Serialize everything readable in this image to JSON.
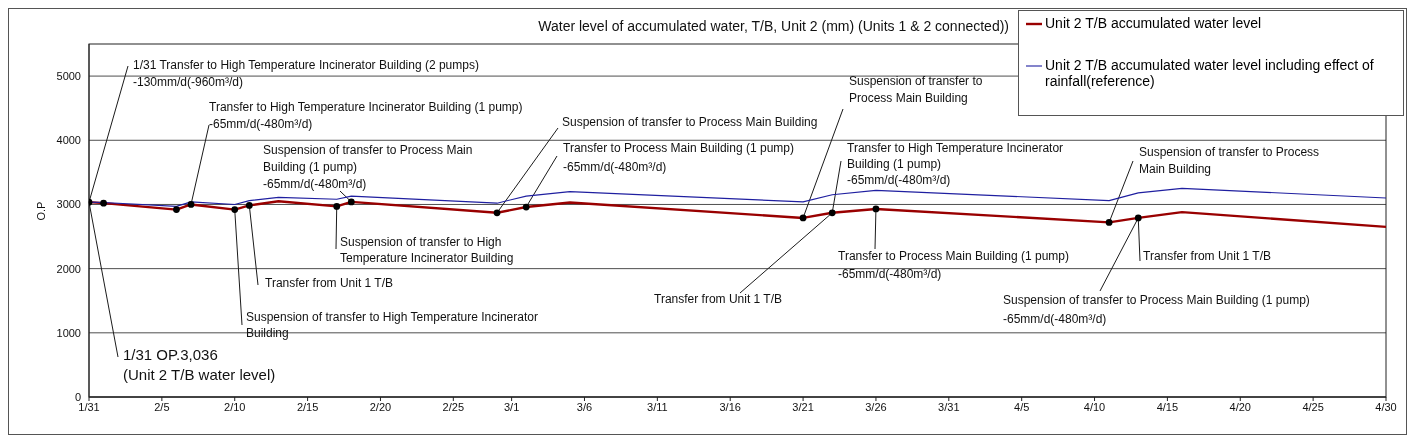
{
  "chart_data": {
    "type": "line",
    "title": "Water level of accumulated water, T/B, Unit 2 (mm) (Units 1 & 2 connected))",
    "ylabel": "O.P",
    "xlim": [
      "--01-31",
      "--04-30"
    ],
    "xticks": [
      {
        "value": "--01-31",
        "label": "1/31"
      },
      {
        "value": "--02-05",
        "label": "2/5"
      },
      {
        "value": "--02-10",
        "label": "2/10"
      },
      {
        "value": "--02-15",
        "label": "2/15"
      },
      {
        "value": "--02-20",
        "label": "2/20"
      },
      {
        "value": "--02-25",
        "label": "2/25"
      },
      {
        "value": "--03-01",
        "label": "3/1"
      },
      {
        "value": "--03-06",
        "label": "3/6"
      },
      {
        "value": "--03-11",
        "label": "3/11"
      },
      {
        "value": "--03-16",
        "label": "3/16"
      },
      {
        "value": "--03-21",
        "label": "3/21"
      },
      {
        "value": "--03-26",
        "label": "3/26"
      },
      {
        "value": "--03-31",
        "label": "3/31"
      },
      {
        "value": "--04-05",
        "label": "4/5"
      },
      {
        "value": "--04-10",
        "label": "4/10"
      },
      {
        "value": "--04-15",
        "label": "4/15"
      },
      {
        "value": "--04-20",
        "label": "4/20"
      },
      {
        "value": "--04-25",
        "label": "4/25"
      },
      {
        "value": "--04-30",
        "label": "4/30"
      }
    ],
    "ylim": [
      0,
      5500
    ],
    "yticks": [
      0,
      1000,
      2000,
      3000,
      4000,
      5000
    ],
    "grid": "y",
    "legend": "top right",
    "series": [
      {
        "name": "Unit 2 T/B accumulated water level",
        "color": "#990000",
        "x": [
          "--01-31",
          "--02-01",
          "--02-06",
          "--02-07",
          "--02-10",
          "--02-11",
          "--02-13",
          "--02-17",
          "--02-18",
          "--02-28",
          "--03-02",
          "--03-05",
          "--03-21",
          "--03-23",
          "--03-26",
          "--04-11",
          "--04-13",
          "--04-16",
          "--04-30"
        ],
        "values": [
          3036,
          3020,
          2920,
          3000,
          2920,
          2985,
          3050,
          2970,
          3040,
          2870,
          2960,
          3030,
          2790,
          2870,
          2930,
          2720,
          2790,
          2880,
          2650
        ]
      },
      {
        "name": "Unit 2 T/B accumulated water level including effect of rainfall(reference)",
        "color": "#1f1fa0",
        "x": [
          "--01-31",
          "--02-01",
          "--02-06",
          "--02-07",
          "--02-10",
          "--02-11",
          "--02-13",
          "--02-17",
          "--02-18",
          "--02-28",
          "--03-02",
          "--03-05",
          "--03-21",
          "--03-23",
          "--03-26",
          "--04-11",
          "--04-13",
          "--04-16",
          "--04-30"
        ],
        "values": [
          3036,
          3030,
          2970,
          3040,
          3000,
          3060,
          3110,
          3080,
          3130,
          3020,
          3130,
          3200,
          3040,
          3150,
          3220,
          3060,
          3180,
          3250,
          3100
        ]
      },
      {
        "type": "scatter",
        "color": "#000000",
        "marker": "circle",
        "x": [
          "--01-31",
          "--02-01",
          "--02-06",
          "--02-07",
          "--02-10",
          "--02-11",
          "--02-17",
          "--02-18",
          "--02-28",
          "--03-02",
          "--03-21",
          "--03-23",
          "--03-26",
          "--04-11",
          "--04-13"
        ],
        "values": [
          3036,
          3020,
          2920,
          3000,
          2920,
          2985,
          2970,
          3040,
          2870,
          2960,
          2790,
          2870,
          2930,
          2720,
          2790
        ]
      }
    ],
    "annotations": [
      {
        "text": "1/31  Transfer to High Temperature Incinerator Building (2 pumps)\n-130mm/d(-960m³/d)",
        "x": "--01-31",
        "y": 3036
      },
      {
        "text": "Transfer to High Temperature Incinerator Building (1 pump)\n-65mm/d(-480m³/d)",
        "x": "--02-07",
        "y": 3000
      },
      {
        "text": "Suspension of transfer to Process Main\nBuilding (1 pump)\n-65mm/d(-480m³/d)",
        "x": "--02-18",
        "y": 3040
      },
      {
        "text": "Suspension of transfer to High\nTemperature Incinerator Building",
        "x": "--02-17",
        "y": 2970
      },
      {
        "text": "Transfer from Unit 1 T/B",
        "x": "--02-11",
        "y": 2985
      },
      {
        "text": "Suspension of transfer to High Temperature Incinerator\nBuilding",
        "x": "--02-10",
        "y": 2920
      },
      {
        "text": "1/31  OP.3,036\n(Unit 2 T/B water level)",
        "x": "--01-31",
        "y": 3036
      },
      {
        "text": "Suspension of transfer to Process Main Building",
        "x": "--02-28",
        "y": 2870
      },
      {
        "text": "Transfer to Process Main Building (1 pump)\n-65mm/d(-480m³/d)",
        "x": "--03-02",
        "y": 2960
      },
      {
        "text": "Transfer from Unit 1 T/B",
        "x": "--03-23",
        "y": 2870
      },
      {
        "text": "Suspension of transfer to\nProcess Main Building",
        "x": "--03-21",
        "y": 2790
      },
      {
        "text": "Transfer to High Temperature Incinerator\nBuilding (1 pump)\n-65mm/d(-480m³/d)",
        "x": "--03-23",
        "y": 2870
      },
      {
        "text": "Transfer to Process Main Building (1 pump)\n-65mm/d(-480m³/d)",
        "x": "--03-26",
        "y": 2930
      },
      {
        "text": "Suspension of transfer to Process\nMain Building",
        "x": "--04-11",
        "y": 2720
      },
      {
        "text": "Transfer from Unit 1 T/B",
        "x": "--04-13",
        "y": 2790
      },
      {
        "text": "Suspension of transfer to Process Main Building (1 pump)\n-65mm/d(-480m³/d)",
        "x": "--04-13",
        "y": 2790
      }
    ]
  }
}
